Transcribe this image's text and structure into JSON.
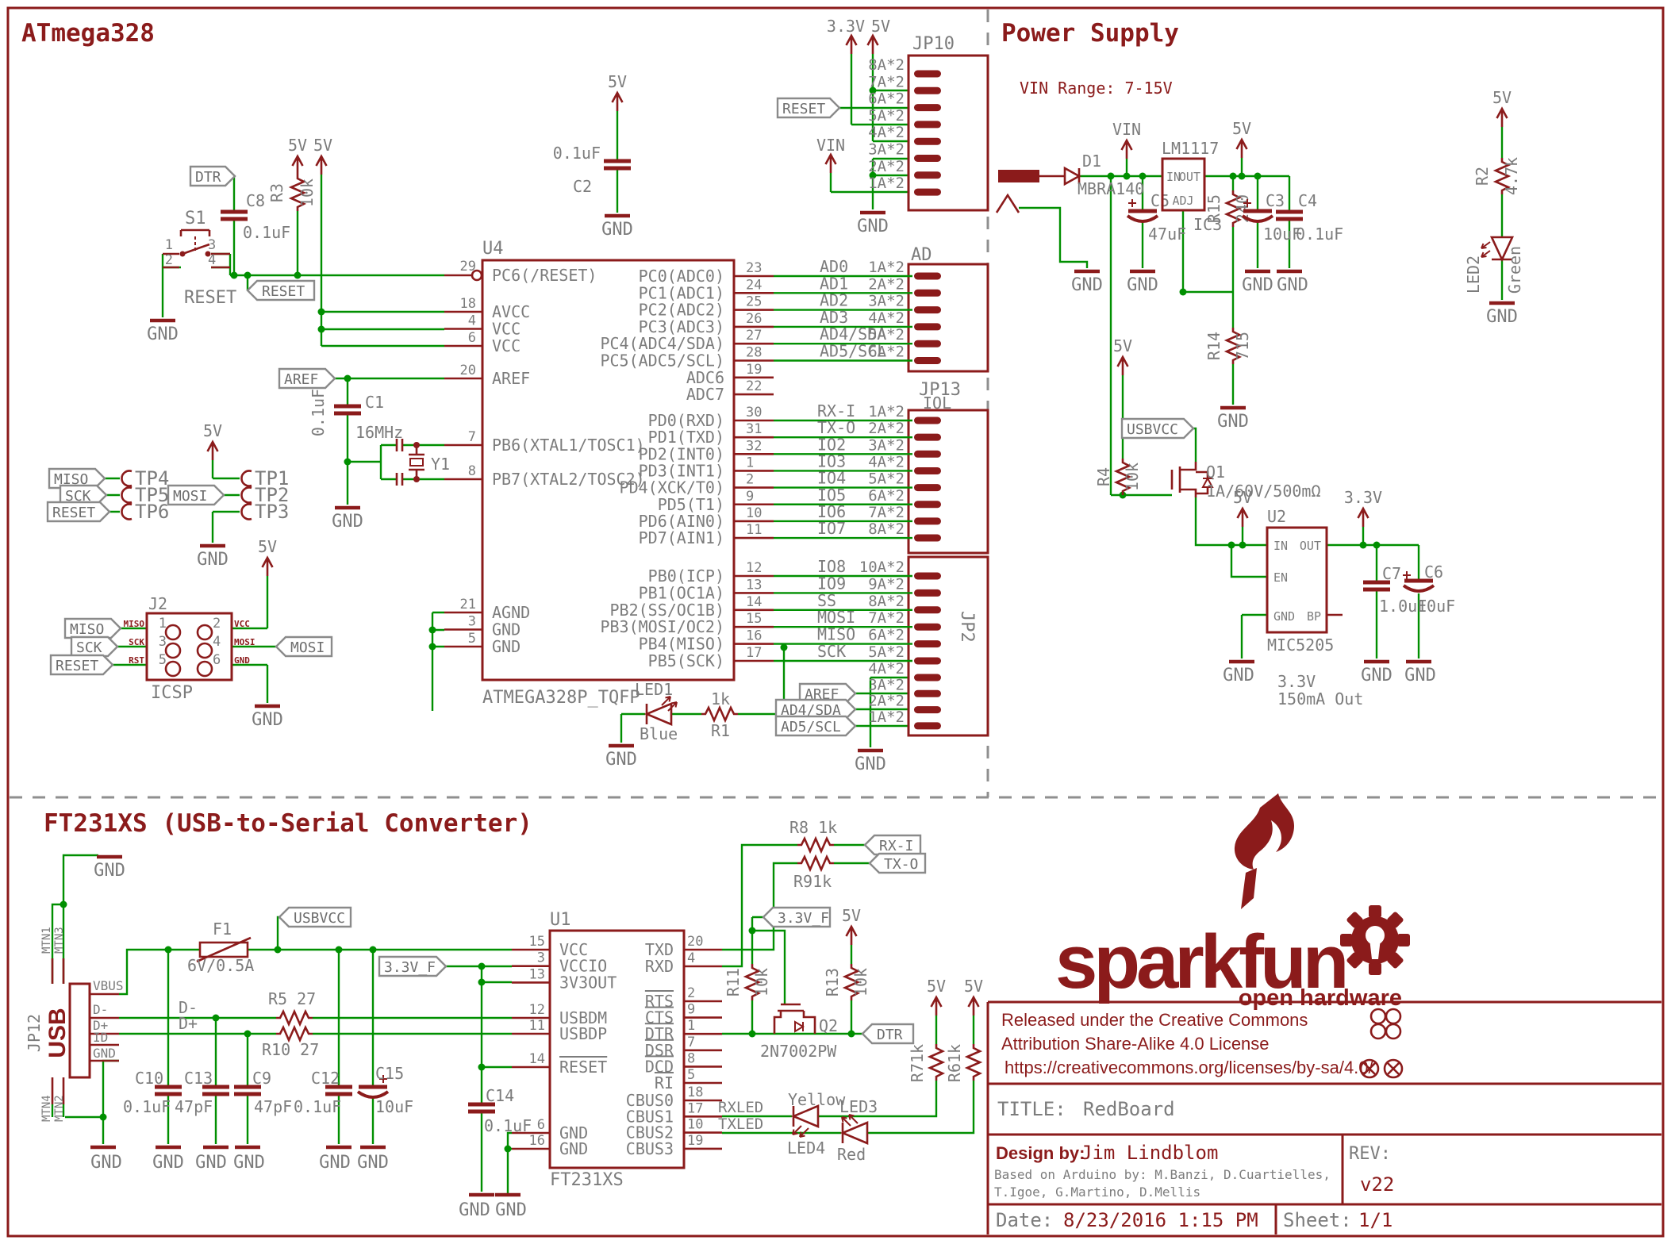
{
  "t": {
    "atmega": "ATmega328",
    "power": "Power Supply",
    "ft": "FT231XS (USB-to-Serial Converter)",
    "vinrange": "VIN Range: 7-15V"
  },
  "n": {
    "gnd": "GND",
    "v5": "5V",
    "v33": "3.3V",
    "vin": "VIN",
    "rst": "RESET",
    "dtr": "DTR",
    "aref": "AREF",
    "miso": "MISO",
    "sck": "SCK",
    "mosi": "MOSI",
    "usbvcc": "USBVCC",
    "v33f": "3.3V_F",
    "rxi": "RX-I",
    "txo": "TX-O",
    "ad4": "AD4/SDA",
    "ad5": "AD5/SCL",
    "dm": "D-",
    "dp": "D+",
    "rxled": "RXLED",
    "txled": "TXLED"
  },
  "u4": {
    "ref": "U4",
    "part": "ATMEGA328P_TQFP",
    "g1": [
      {
        "num": "29",
        "name": "PC6(/RESET)"
      }
    ],
    "g2": [
      {
        "num": "18",
        "name": "AVCC"
      },
      {
        "num": "4",
        "name": "VCC"
      },
      {
        "num": "6",
        "name": "VCC"
      }
    ],
    "g3": [
      {
        "num": "20",
        "name": "AREF"
      }
    ],
    "g4": [
      {
        "num": "7",
        "name": "PB6(XTAL1/TOSC1)"
      },
      {
        "num": "8",
        "name": "PB7(XTAL2/TOSC2)"
      }
    ],
    "g5": [
      {
        "num": "21",
        "name": "AGND"
      },
      {
        "num": "3",
        "name": "GND"
      },
      {
        "num": "5",
        "name": "GND"
      }
    ],
    "pc": [
      {
        "name": "PC0(ADC0)",
        "num": "23"
      },
      {
        "name": "PC1(ADC1)",
        "num": "24"
      },
      {
        "name": "PC2(ADC2)",
        "num": "25"
      },
      {
        "name": "PC3(ADC3)",
        "num": "26"
      },
      {
        "name": "PC4(ADC4/SDA)",
        "num": "27"
      },
      {
        "name": "PC5(ADC5/SCL)",
        "num": "28"
      },
      {
        "name": "ADC6",
        "num": "19"
      },
      {
        "name": "ADC7",
        "num": "22"
      }
    ],
    "pd": [
      {
        "name": "PD0(RXD)",
        "num": "30"
      },
      {
        "name": "PD1(TXD)",
        "num": "31"
      },
      {
        "name": "PD2(INT0)",
        "num": "32"
      },
      {
        "name": "PD3(INT1)",
        "num": "1"
      },
      {
        "name": "PD4(XCK/T0)",
        "num": "2"
      },
      {
        "name": "PD5(T1)",
        "num": "9"
      },
      {
        "name": "PD6(AIN0)",
        "num": "10"
      },
      {
        "name": "PD7(AIN1)",
        "num": "11"
      }
    ],
    "pb": [
      {
        "name": "PB0(ICP)",
        "num": "12"
      },
      {
        "name": "PB1(OC1A)",
        "num": "13"
      },
      {
        "name": "PB2(SS/OC1B)",
        "num": "14"
      },
      {
        "name": "PB3(MOSI/OC2)",
        "num": "15"
      },
      {
        "name": "PB4(MISO)",
        "num": "16"
      },
      {
        "name": "PB5(SCK)",
        "num": "17"
      }
    ]
  },
  "hdr": {
    "jp10": {
      "ref": "JP10",
      "rows": [
        "8A*2",
        "7A*2",
        "6A*2",
        "5A*2",
        "4A*2",
        "3A*2",
        "2A*2",
        "1A*2"
      ]
    },
    "ad": {
      "ref": "AD",
      "rows": [
        {
          "sig": "AD0",
          "pin": "1A*2"
        },
        {
          "sig": "AD1",
          "pin": "2A*2"
        },
        {
          "sig": "AD2",
          "pin": "3A*2"
        },
        {
          "sig": "AD3",
          "pin": "4A*2"
        },
        {
          "sig": "AD4/SDA",
          "pin": "5A*2"
        },
        {
          "sig": "AD5/SCL",
          "pin": "6A*2"
        }
      ]
    },
    "iol": {
      "ref": "JP13",
      "sub": "IOL",
      "rows": [
        {
          "sig": "RX-I",
          "pin": "1A*2"
        },
        {
          "sig": "TX-O",
          "pin": "2A*2"
        },
        {
          "sig": "IO2",
          "pin": "3A*2"
        },
        {
          "sig": "IO3",
          "pin": "4A*2"
        },
        {
          "sig": "IO4",
          "pin": "5A*2"
        },
        {
          "sig": "IO5",
          "pin": "6A*2"
        },
        {
          "sig": "IO6",
          "pin": "7A*2"
        },
        {
          "sig": "IO7",
          "pin": "8A*2"
        }
      ]
    },
    "jp2": {
      "ref": "JP2",
      "a": [
        {
          "sig": "IO8",
          "pin": "10A*2"
        },
        {
          "sig": "IO9",
          "pin": "9A*2"
        },
        {
          "sig": "SS",
          "pin": "8A*2"
        },
        {
          "sig": "MOSI",
          "pin": "7A*2"
        },
        {
          "sig": "MISO",
          "pin": "6A*2"
        },
        {
          "sig": "SCK",
          "pin": "5A*2"
        }
      ],
      "b": [
        "4A*2",
        "3A*2",
        "2A*2",
        "1A*2"
      ]
    }
  },
  "c": {
    "s1": {
      "r": "S1",
      "v": "RESET",
      "p1": "1",
      "p2": "2",
      "p3": "3",
      "p4": "4"
    },
    "c8": {
      "r": "C8",
      "v": "0.1uF"
    },
    "r3": {
      "r": "R3",
      "v": "10k"
    },
    "c2": {
      "r": "C2",
      "v": "0.1uF"
    },
    "c1": {
      "r": "C1",
      "v": "0.1uF"
    },
    "y1": {
      "r": "Y1",
      "v": "16MHz"
    },
    "tpl": [
      "TP4",
      "TP5",
      "TP6"
    ],
    "tpr": [
      "TP1",
      "TP2",
      "TP3"
    ],
    "j2": {
      "r": "J2",
      "v": "ICSP",
      "n1": "1",
      "n2": "2",
      "n3": "3",
      "n4": "4",
      "n5": "5",
      "n6": "6",
      "l1": "MISO",
      "l2": "SCK",
      "l3": "RST",
      "l4": "VCC",
      "l5": "MOSI",
      "l6": "GND"
    },
    "led1": {
      "r": "LED1",
      "v": "Blue"
    },
    "r1": {
      "r": "R1",
      "v": "1k"
    },
    "d1": {
      "r": "D1",
      "v": "MBRA140"
    },
    "c5": {
      "r": "C5",
      "v": "47uF"
    },
    "ic3": {
      "r": "IC3",
      "part": "LM1117",
      "pin": "IN",
      "pout": "OUT",
      "padj": "ADJ"
    },
    "r15": {
      "r": "R15",
      "v": "240"
    },
    "r14": {
      "r": "R14",
      "v": "715"
    },
    "c3": {
      "r": "C3",
      "v": "10uF"
    },
    "c4": {
      "r": "C4",
      "v": "0.1uF"
    },
    "r2": {
      "r": "R2",
      "v": "4.7k"
    },
    "led2": {
      "r": "LED2",
      "v": "Green"
    },
    "r4": {
      "r": "R4",
      "v": "10k"
    },
    "q1": {
      "r": "Q1",
      "v": "1A/60V/500mΩ"
    },
    "u2": {
      "r": "U2",
      "part": "MIC5205",
      "pin": "IN",
      "pout": "OUT",
      "pen": "EN",
      "pgnd": "GND",
      "pbp": "BP",
      "n1": "3.3V",
      "n2": "150mA Out"
    },
    "c7": {
      "r": "C7",
      "v": "1.0uF"
    },
    "c6": {
      "r": "C6",
      "v": "10uF"
    },
    "jp12": {
      "r": "JP12",
      "v": "USB",
      "vbus": "VBUS",
      "dm": "D-",
      "dp": "D+",
      "id": "ID",
      "gnd": "GND",
      "m1": "MTN1",
      "m3": "MTN3",
      "m4": "MTN4",
      "m2": "MTN2"
    },
    "f1": {
      "r": "F1",
      "v": "6V/0.5A"
    },
    "r5": "R5 27",
    "r10": "R10 27",
    "c10": {
      "r": "C10",
      "v": "0.1uF"
    },
    "c13": {
      "r": "C13",
      "v": "47pF"
    },
    "c9": {
      "r": "C9",
      "v": "47pF"
    },
    "c12": {
      "r": "C12",
      "v": "0.1uF"
    },
    "c15": {
      "r": "C15",
      "v": "10uF"
    },
    "c14": {
      "r": "C14",
      "v": "0.1uF"
    },
    "u1": {
      "r": "U1",
      "part": "FT231XS",
      "lg1": [
        {
          "num": "15",
          "name": "VCC"
        },
        {
          "num": "3",
          "name": "VCCIO"
        },
        {
          "num": "13",
          "name": "3V3OUT"
        }
      ],
      "lg2": [
        {
          "num": "12",
          "name": "USBDM"
        },
        {
          "num": "11",
          "name": "USBDP"
        }
      ],
      "lg3": [
        {
          "num": "14",
          "name": "RESET"
        }
      ],
      "lg4": [
        {
          "num": "6",
          "name": "GND"
        },
        {
          "num": "16",
          "name": "GND"
        }
      ],
      "rg1": [
        {
          "name": "TXD",
          "num": "20"
        },
        {
          "name": "RXD",
          "num": "4"
        }
      ],
      "rg2": [
        {
          "name": "RTS",
          "num": "2"
        },
        {
          "name": "CTS",
          "num": "9"
        },
        {
          "name": "DTR",
          "num": "1"
        },
        {
          "name": "DSR",
          "num": "7"
        },
        {
          "name": "DCD",
          "num": "8"
        },
        {
          "name": "RI",
          "num": "5"
        }
      ],
      "rg3": [
        {
          "name": "CBUS0",
          "num": "18"
        },
        {
          "name": "CBUS1",
          "num": "17"
        },
        {
          "name": "CBUS2",
          "num": "10"
        },
        {
          "name": "CBUS3",
          "num": "19"
        }
      ]
    },
    "r8": "R8 1k",
    "r9": "R91k",
    "r11": {
      "r": "R11",
      "v": "10k"
    },
    "r13": {
      "r": "R13",
      "v": "10k"
    },
    "q2": {
      "r": "Q2",
      "v": "2N7002PW"
    },
    "r7": "R71k",
    "r6": "R61k",
    "led3": {
      "r": "LED3",
      "v": "Red"
    },
    "led4": {
      "r": "LED4",
      "v": "Yellow"
    }
  },
  "logo": {
    "name": "sparkfun",
    "tag": "open hardware"
  },
  "tb": {
    "l1": "Released under the Creative Commons",
    "l2": "Attribution Share-Alike 4.0 License",
    "l3": "https://creativecommons.org/licenses/by-sa/4.0/",
    "tl": "TITLE:",
    "title": "RedBoard",
    "dl": "Design by:",
    "designer": "Jim Lindblom",
    "b1": "Based on Arduino by: M.Banzi, D.Cuartielles,",
    "b2": "T.Igoe, G.Martino, D.Mellis",
    "rl": "REV:",
    "rev": "v22",
    "dal": "Date:",
    "date": "8/23/2016 1:15 PM",
    "sl": "Sheet:",
    "sheet": "1/1"
  }
}
